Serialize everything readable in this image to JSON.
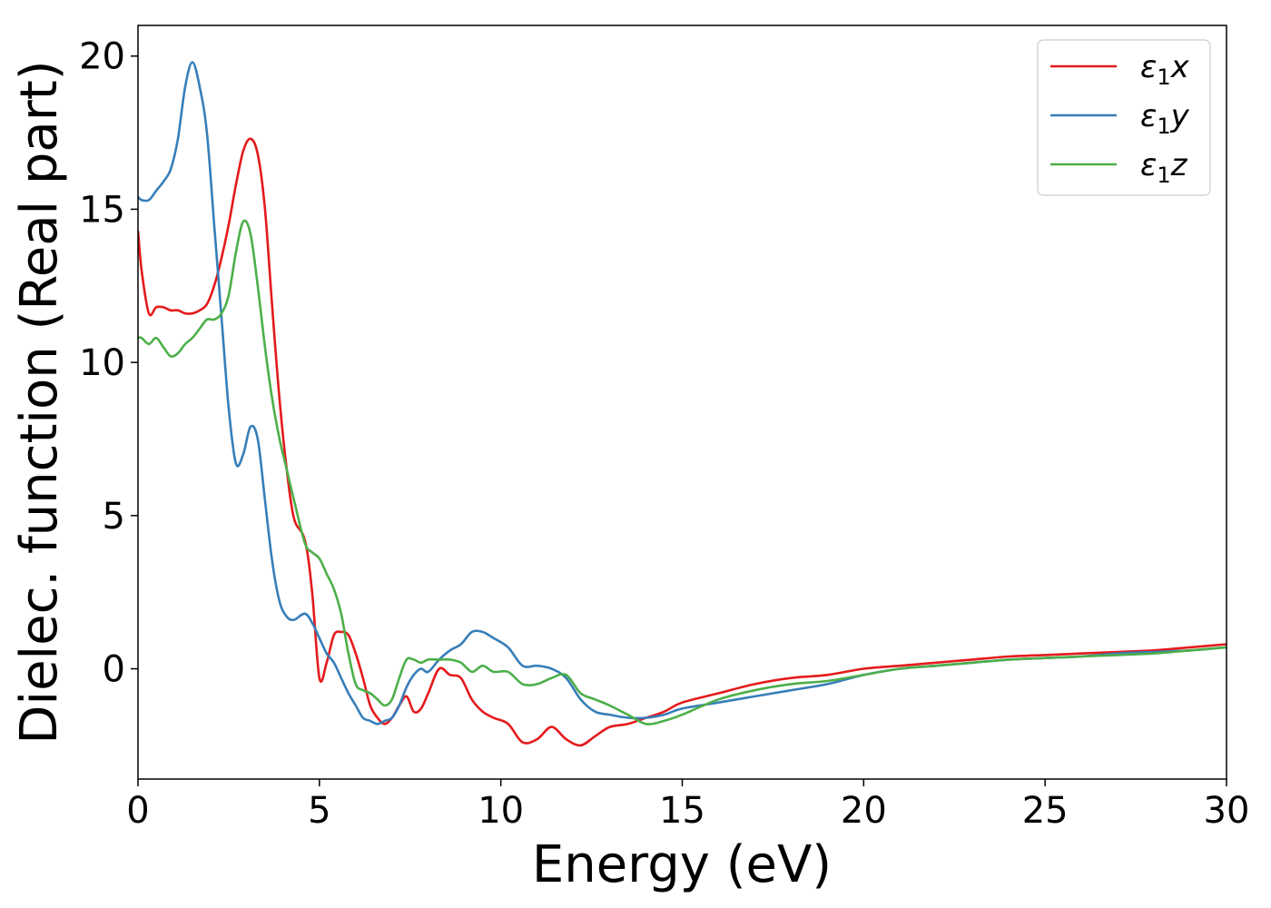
{
  "chart_data": {
    "type": "line",
    "xlabel": "Energy (eV)",
    "ylabel": "Dielec. function (Real part)",
    "xlim": [
      0,
      30
    ],
    "ylim": [
      -3.6,
      21
    ],
    "xticks": [
      0,
      5,
      10,
      15,
      20,
      25,
      30
    ],
    "yticks": [
      0,
      5,
      10,
      15,
      20
    ],
    "grid": false,
    "legend_position": "top-right",
    "series": [
      {
        "name": "ε₁x",
        "legend_main": "ε",
        "legend_sub": "1",
        "legend_suffix": "x",
        "color": "#e41a1c",
        "x": [
          0,
          0.1,
          0.3,
          0.5,
          0.7,
          0.9,
          1.1,
          1.3,
          1.5,
          1.7,
          1.9,
          2.1,
          2.3,
          2.5,
          2.7,
          2.9,
          3.1,
          3.3,
          3.5,
          3.7,
          3.9,
          4.1,
          4.3,
          4.6,
          4.8,
          5.0,
          5.2,
          5.4,
          5.6,
          5.8,
          6.0,
          6.2,
          6.4,
          6.6,
          6.8,
          7.0,
          7.2,
          7.4,
          7.6,
          7.8,
          8.0,
          8.3,
          8.6,
          8.9,
          9.2,
          9.5,
          9.8,
          10.2,
          10.6,
          11.0,
          11.4,
          11.8,
          12.2,
          12.6,
          13.0,
          13.5,
          14.0,
          14.5,
          15.0,
          16.0,
          17.0,
          18.0,
          19.0,
          20.0,
          21.0,
          22.0,
          23.0,
          24.0,
          25.0,
          26.0,
          27.0,
          28.0,
          29.0,
          30.0
        ],
        "y": [
          14.3,
          13.0,
          11.6,
          11.8,
          11.8,
          11.7,
          11.7,
          11.6,
          11.6,
          11.7,
          11.9,
          12.5,
          13.4,
          14.5,
          15.8,
          16.9,
          17.3,
          16.8,
          15.0,
          11.8,
          8.8,
          6.5,
          4.9,
          4.2,
          2.5,
          -0.3,
          0.2,
          1.1,
          1.2,
          1.1,
          0.5,
          -0.3,
          -1.2,
          -1.6,
          -1.8,
          -1.6,
          -1.2,
          -0.9,
          -1.4,
          -1.3,
          -0.8,
          0.0,
          -0.2,
          -0.3,
          -1.0,
          -1.4,
          -1.6,
          -1.8,
          -2.4,
          -2.3,
          -1.9,
          -2.3,
          -2.5,
          -2.2,
          -1.9,
          -1.8,
          -1.6,
          -1.4,
          -1.1,
          -0.8,
          -0.5,
          -0.3,
          -0.2,
          0.0,
          0.1,
          0.2,
          0.3,
          0.4,
          0.45,
          0.5,
          0.55,
          0.6,
          0.7,
          0.8
        ]
      },
      {
        "name": "ε₁y",
        "legend_main": "ε",
        "legend_sub": "1",
        "legend_suffix": "y",
        "color": "#377eb8",
        "x": [
          0,
          0.1,
          0.3,
          0.5,
          0.7,
          0.9,
          1.1,
          1.3,
          1.5,
          1.7,
          1.9,
          2.1,
          2.3,
          2.5,
          2.7,
          2.9,
          3.1,
          3.3,
          3.5,
          3.7,
          3.9,
          4.1,
          4.3,
          4.6,
          4.8,
          5.0,
          5.2,
          5.4,
          5.6,
          5.8,
          6.0,
          6.2,
          6.4,
          6.6,
          6.8,
          7.0,
          7.2,
          7.4,
          7.6,
          7.8,
          8.0,
          8.3,
          8.6,
          8.9,
          9.2,
          9.5,
          9.8,
          10.2,
          10.6,
          11.0,
          11.4,
          11.8,
          12.2,
          12.6,
          13.0,
          13.5,
          14.0,
          14.5,
          15.0,
          16.0,
          17.0,
          18.0,
          19.0,
          20.0,
          21.0,
          22.0,
          23.0,
          24.0,
          25.0,
          26.0,
          27.0,
          28.0,
          29.0,
          30.0
        ],
        "y": [
          15.4,
          15.3,
          15.3,
          15.6,
          15.9,
          16.3,
          17.3,
          19.0,
          19.8,
          19.0,
          17.5,
          14.5,
          11.5,
          8.5,
          6.7,
          7.0,
          7.9,
          7.5,
          5.5,
          3.5,
          2.2,
          1.7,
          1.6,
          1.8,
          1.5,
          1.0,
          0.5,
          0.2,
          -0.3,
          -0.8,
          -1.2,
          -1.6,
          -1.7,
          -1.8,
          -1.7,
          -1.6,
          -1.2,
          -0.6,
          -0.2,
          0.0,
          -0.1,
          0.3,
          0.6,
          0.8,
          1.2,
          1.2,
          1.0,
          0.7,
          0.1,
          0.1,
          0.0,
          -0.3,
          -1.0,
          -1.4,
          -1.5,
          -1.6,
          -1.6,
          -1.5,
          -1.3,
          -1.1,
          -0.9,
          -0.7,
          -0.5,
          -0.2,
          0.0,
          0.1,
          0.2,
          0.3,
          0.35,
          0.4,
          0.5,
          0.55,
          0.6,
          0.7
        ]
      },
      {
        "name": "ε₁z",
        "legend_main": "ε",
        "legend_sub": "1",
        "legend_suffix": "z",
        "color": "#4daf4a",
        "x": [
          0,
          0.1,
          0.3,
          0.5,
          0.7,
          0.9,
          1.1,
          1.3,
          1.5,
          1.7,
          1.9,
          2.1,
          2.3,
          2.5,
          2.7,
          2.9,
          3.1,
          3.3,
          3.5,
          3.7,
          3.9,
          4.1,
          4.3,
          4.6,
          4.8,
          5.0,
          5.2,
          5.4,
          5.6,
          5.8,
          6.0,
          6.2,
          6.4,
          6.6,
          6.8,
          7.0,
          7.2,
          7.4,
          7.6,
          7.8,
          8.0,
          8.3,
          8.6,
          8.9,
          9.2,
          9.5,
          9.8,
          10.2,
          10.6,
          11.0,
          11.4,
          11.8,
          12.2,
          12.6,
          13.0,
          13.5,
          14.0,
          14.5,
          15.0,
          16.0,
          17.0,
          18.0,
          19.0,
          20.0,
          21.0,
          22.0,
          23.0,
          24.0,
          25.0,
          26.0,
          27.0,
          28.0,
          29.0,
          30.0
        ],
        "y": [
          10.8,
          10.8,
          10.6,
          10.8,
          10.5,
          10.2,
          10.3,
          10.6,
          10.8,
          11.1,
          11.4,
          11.4,
          11.6,
          12.2,
          13.6,
          14.6,
          14.2,
          12.5,
          10.5,
          8.8,
          7.5,
          6.5,
          5.5,
          4.1,
          3.8,
          3.6,
          3.1,
          2.6,
          1.8,
          0.5,
          -0.5,
          -0.7,
          -0.8,
          -1.0,
          -1.2,
          -1.0,
          -0.3,
          0.3,
          0.3,
          0.2,
          0.3,
          0.3,
          0.3,
          0.2,
          -0.1,
          0.1,
          -0.1,
          -0.1,
          -0.5,
          -0.5,
          -0.3,
          -0.2,
          -0.8,
          -1.0,
          -1.2,
          -1.5,
          -1.8,
          -1.7,
          -1.5,
          -1.0,
          -0.7,
          -0.5,
          -0.4,
          -0.2,
          0.0,
          0.1,
          0.2,
          0.3,
          0.35,
          0.4,
          0.45,
          0.5,
          0.6,
          0.7
        ]
      }
    ]
  }
}
